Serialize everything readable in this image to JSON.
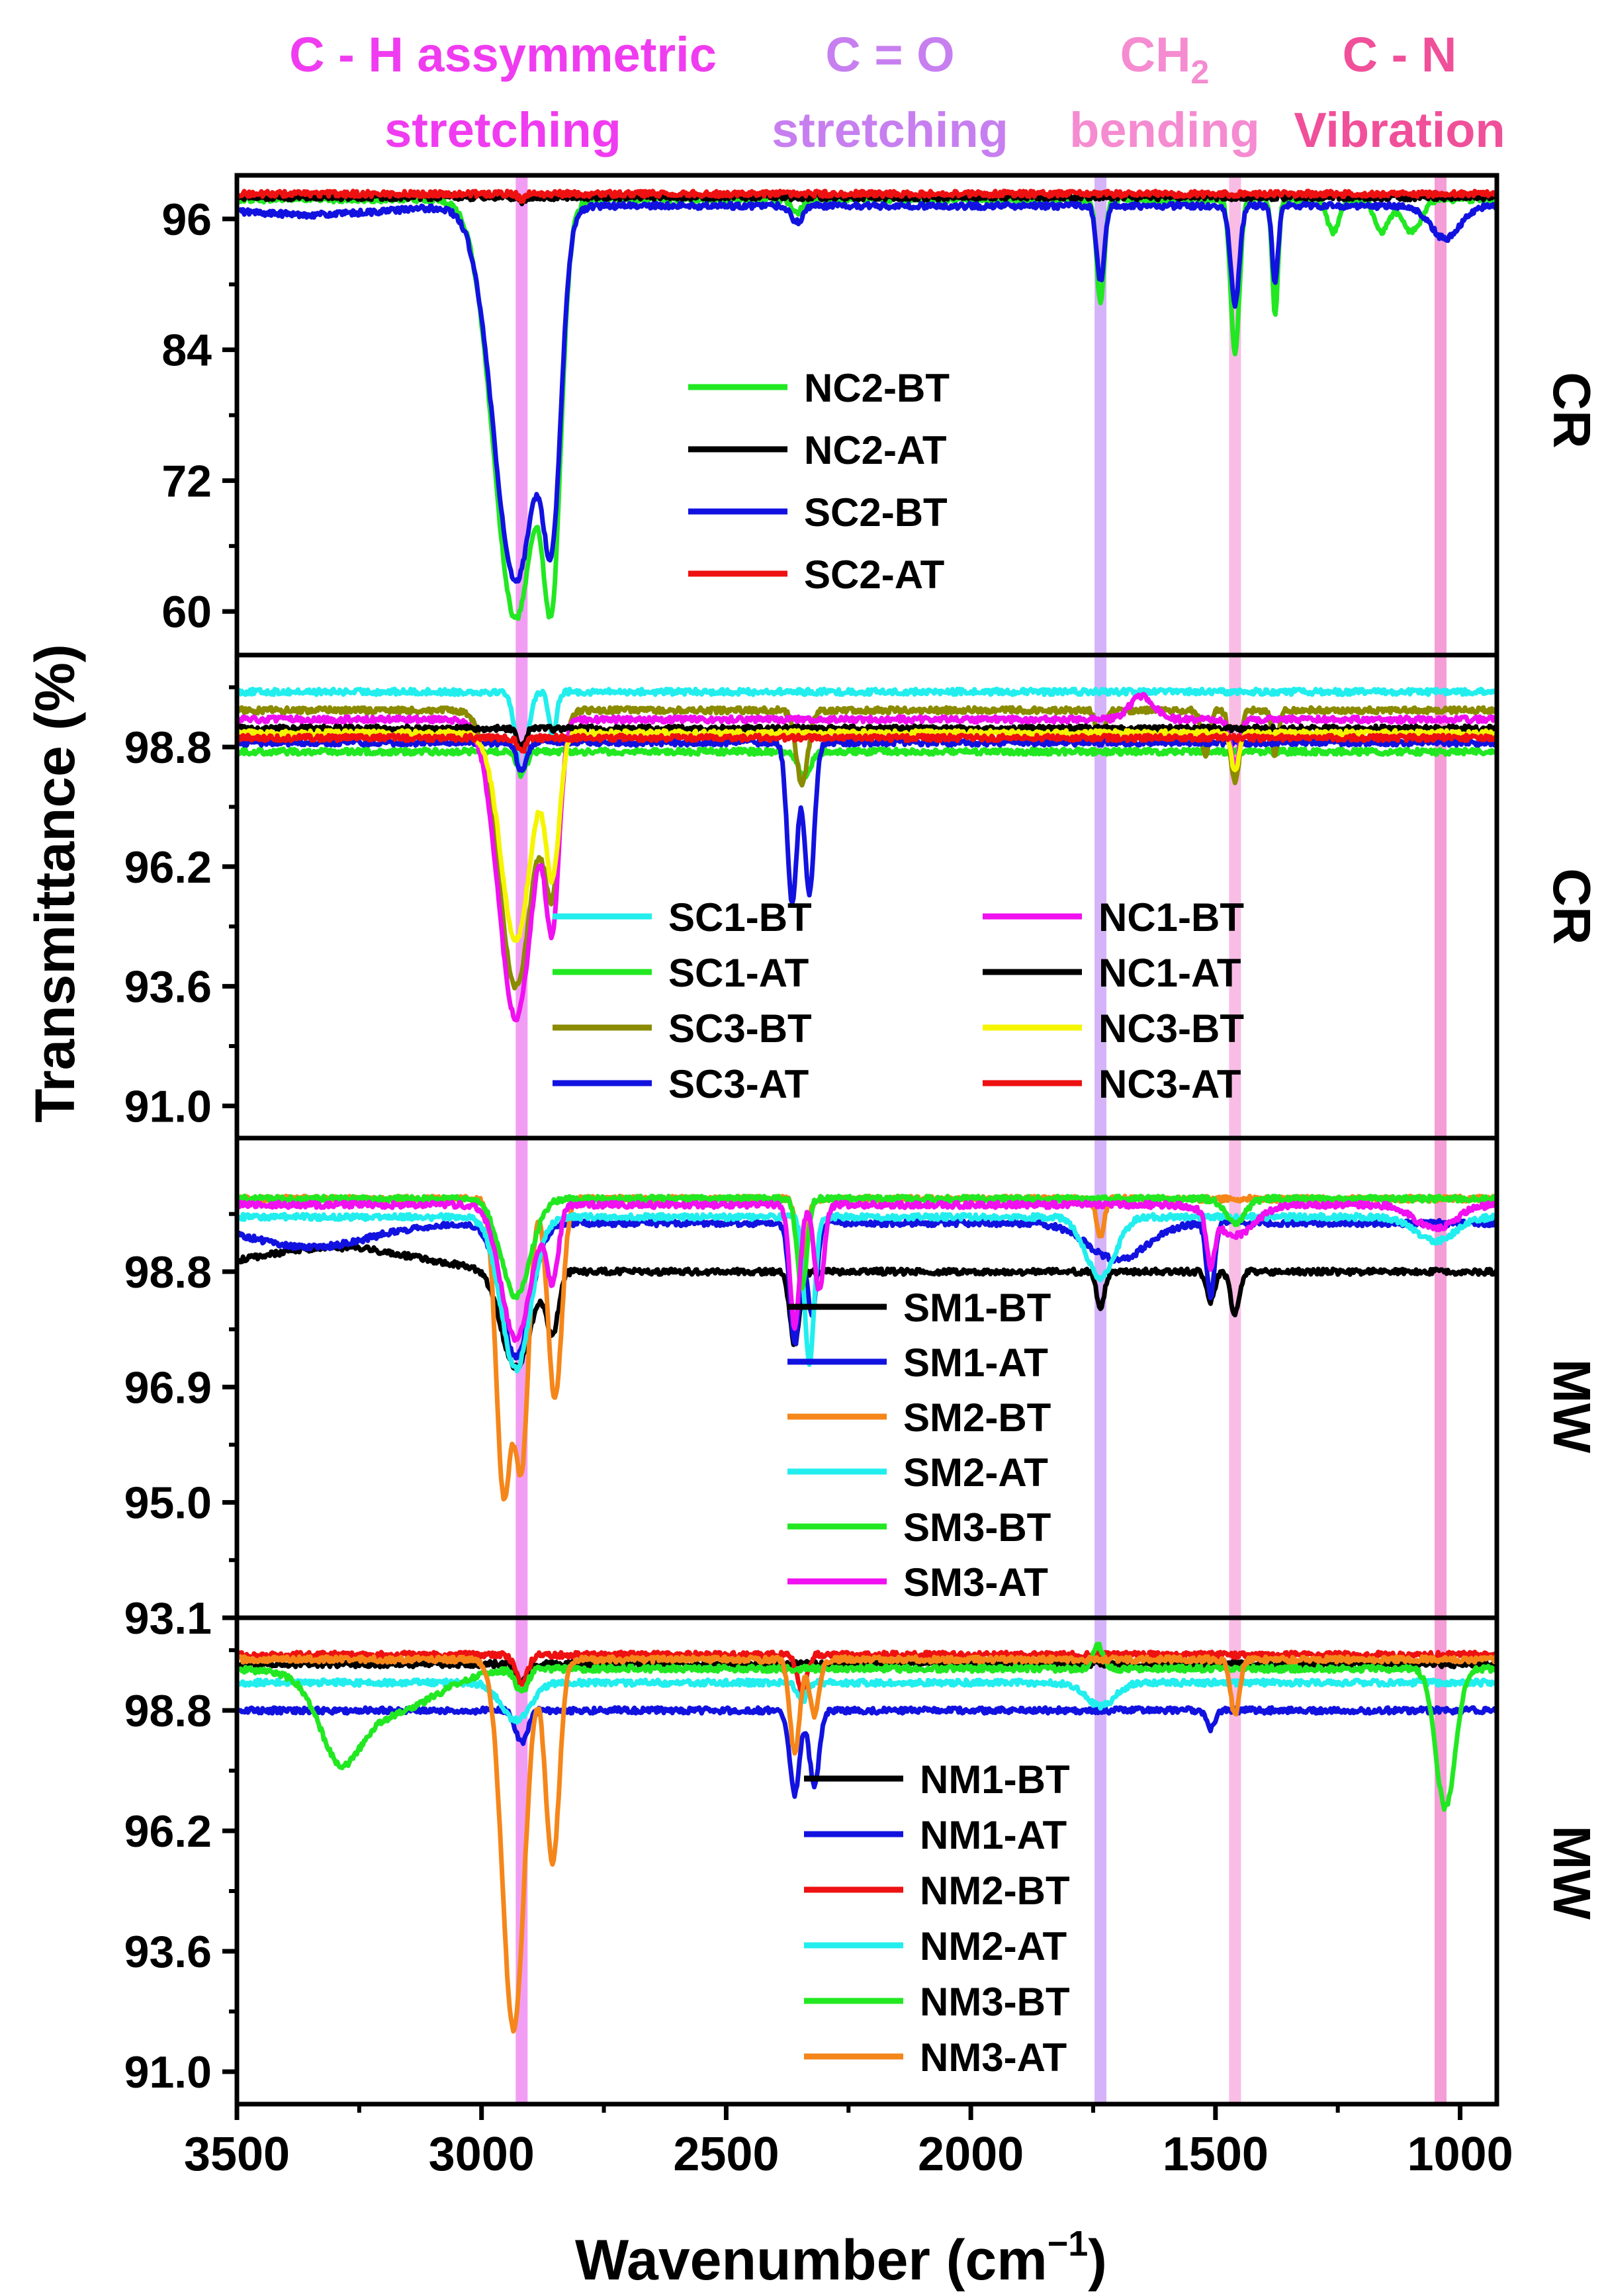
{
  "chart_data": {
    "type": "line",
    "title": "",
    "xlabel": "Wavenumber (cm",
    "xlabel_sup": "−1",
    "xlabel_close": ")",
    "ylabel": "Transmittance (%)",
    "xlim": [
      3500,
      925
    ],
    "x_ticks": [
      3500,
      3000,
      2500,
      2000,
      1500,
      1000
    ],
    "bands": [
      {
        "name": "C-H",
        "x": 2918,
        "color": "#ee7cf0",
        "line1": "C - H assymmetric",
        "line2": "stretching",
        "line2_sub": "",
        "line2_tail": "",
        "label_color": "#f03cf0"
      },
      {
        "name": "C=O",
        "x": 1735,
        "color": "#c79af5",
        "line1": "C = O",
        "line2": "stretching",
        "line2_sub": "",
        "line2_tail": "",
        "label_color": "#c77ff0"
      },
      {
        "name": "CH2",
        "x": 1460,
        "color": "#f5a5dc",
        "line1": "CH",
        "line1_sub": "2",
        "line2": "bending",
        "line2_sub": "",
        "line2_tail": "",
        "label_color": "#f58bd0"
      },
      {
        "name": "C-N",
        "x": 1040,
        "color": "#f07cc8",
        "line1": "C - N",
        "line2": "Vibration",
        "line2_sub": "",
        "line2_tail": "",
        "label_color": "#f0509a"
      }
    ],
    "panels": [
      {
        "id": "panel1",
        "side_label": "CR",
        "ylim": [
          56,
          100
        ],
        "yticks": [
          60,
          72,
          84,
          96
        ],
        "ytick_labels": [
          "60",
          "72",
          "84",
          "96"
        ],
        "legend_cols": 1,
        "series": [
          {
            "name": "NC2-BT",
            "color": "#22e822",
            "base": 97.8,
            "features": [
              [
                2930,
                45,
                -38.5
              ],
              [
                2855,
                18,
                -28
              ],
              [
                2355,
                12,
                -1.2
              ],
              [
                1735,
                8,
                -9.5
              ],
              [
                1460,
                9,
                -14
              ],
              [
                1378,
                6,
                -10.5
              ],
              [
                1260,
                12,
                -3
              ],
              [
                1160,
                14,
                -3
              ],
              [
                1100,
                20,
                -3
              ]
            ]
          },
          {
            "name": "NC2-AT",
            "color": "#000000",
            "base": 98.0,
            "features": [
              [
                2918,
                6,
                -0.5
              ]
            ]
          },
          {
            "name": "SC2-BT",
            "color": "#1212e0",
            "base": 97.2,
            "features": [
              [
                2930,
                45,
                -34.5
              ],
              [
                2855,
                18,
                -23
              ],
              [
                3350,
                150,
                -0.8
              ],
              [
                2355,
                12,
                -1.5
              ],
              [
                1735,
                8,
                -7
              ],
              [
                1460,
                9,
                -9
              ],
              [
                1378,
                6,
                -7
              ],
              [
                1030,
                30,
                -3
              ]
            ]
          },
          {
            "name": "SC2-AT",
            "color": "#ee1111",
            "base": 98.3,
            "features": [
              [
                2918,
                6,
                -0.6
              ]
            ]
          }
        ]
      },
      {
        "id": "panel2",
        "side_label": "CR",
        "ylim": [
          90.3,
          100.8
        ],
        "yticks": [
          91.0,
          93.6,
          96.2,
          98.8
        ],
        "ytick_labels": [
          "91.0",
          "93.6",
          "96.2",
          "98.8"
        ],
        "legend_cols": 2,
        "series": [
          {
            "name": "SC1-BT",
            "color": "#22eeee",
            "base": 100.0,
            "features": [
              [
                2918,
                12,
                -1.8
              ],
              [
                2855,
                8,
                -0.9
              ]
            ]
          },
          {
            "name": "SC1-AT",
            "color": "#22e822",
            "base": 98.7,
            "features": [
              [
                2918,
                10,
                -0.5
              ],
              [
                2340,
                12,
                -0.6
              ]
            ]
          },
          {
            "name": "SC3-BT",
            "color": "#8b8b00",
            "base": 99.6,
            "features": [
              [
                2930,
                35,
                -6.0
              ],
              [
                2855,
                16,
                -3.5
              ],
              [
                2345,
                12,
                -1.6
              ],
              [
                1735,
                8,
                -0.8
              ],
              [
                1460,
                9,
                -1.6
              ],
              [
                1520,
                8,
                -1.0
              ],
              [
                1378,
                6,
                -1.0
              ]
            ]
          },
          {
            "name": "SC3-AT",
            "color": "#1212e0",
            "base": 98.9,
            "features": [
              [
                2365,
                10,
                -3.5
              ],
              [
                2330,
                10,
                -3.3
              ],
              [
                2918,
                10,
                -0.6
              ]
            ]
          },
          {
            "name": "NC1-BT",
            "color": "#f010f0",
            "base": 99.4,
            "features": [
              [
                2930,
                35,
                -6.5
              ],
              [
                2855,
                14,
                -4.0
              ],
              [
                1460,
                9,
                -1.0
              ],
              [
                1650,
                25,
                0.5
              ]
            ]
          },
          {
            "name": "NC1-AT",
            "color": "#000000",
            "base": 99.2,
            "features": [
              [
                2918,
                8,
                -0.4
              ]
            ]
          },
          {
            "name": "NC3-BT",
            "color": "#f5f500",
            "base": 99.1,
            "features": [
              [
                2930,
                30,
                -4.5
              ],
              [
                2855,
                14,
                -3.0
              ],
              [
                1460,
                8,
                -0.8
              ]
            ]
          },
          {
            "name": "NC3-AT",
            "color": "#ee1111",
            "base": 99.0,
            "features": [
              [
                2918,
                8,
                -0.3
              ]
            ]
          }
        ]
      },
      {
        "id": "panel3",
        "side_label": "MW",
        "ylim": [
          93.1,
          101.0
        ],
        "yticks": [
          93.1,
          95.0,
          96.9,
          98.8
        ],
        "ytick_labels": [
          "93.1",
          "95.0",
          "96.9",
          "98.8"
        ],
        "legend_cols": 1,
        "series": [
          {
            "name": "SM1-BT",
            "color": "#000000",
            "base": 98.8,
            "features": [
              [
                2930,
                30,
                -1.6
              ],
              [
                2855,
                12,
                -1.0
              ],
              [
                2360,
                10,
                -1.2
              ],
              [
                1735,
                8,
                -0.6
              ],
              [
                1460,
                9,
                -0.7
              ],
              [
                1510,
                8,
                -0.5
              ],
              [
                3300,
                160,
                0.4
              ]
            ]
          },
          {
            "name": "SM1-AT",
            "color": "#1212e0",
            "base": 99.6,
            "features": [
              [
                2930,
                30,
                -2.2
              ],
              [
                2360,
                10,
                -2.0
              ],
              [
                2325,
                10,
                -1.5
              ],
              [
                1510,
                8,
                -1.2
              ],
              [
                1700,
                60,
                -0.6
              ],
              [
                3350,
                120,
                -0.4
              ]
            ]
          },
          {
            "name": "SM2-BT",
            "color": "#f5861a",
            "base": 100.0,
            "features": [
              [
                2955,
                15,
                -4.8
              ],
              [
                2918,
                14,
                -4.3
              ],
              [
                2850,
                14,
                -3.3
              ],
              [
                2345,
                10,
                -1.2
              ],
              [
                1735,
                8,
                -0.6
              ]
            ]
          },
          {
            "name": "SM2-AT",
            "color": "#22eeee",
            "base": 99.7,
            "features": [
              [
                2930,
                30,
                -2.5
              ],
              [
                2330,
                10,
                -2.4
              ],
              [
                1735,
                30,
                -1.0
              ],
              [
                1050,
                40,
                -0.4
              ]
            ]
          },
          {
            "name": "SM3-BT",
            "color": "#22e822",
            "base": 100.0,
            "features": [
              [
                2930,
                30,
                -1.6
              ],
              [
                2345,
                10,
                -1.5
              ],
              [
                1460,
                20,
                -0.4
              ]
            ]
          },
          {
            "name": "SM3-AT",
            "color": "#f010f0",
            "base": 99.9,
            "features": [
              [
                2930,
                30,
                -2.2
              ],
              [
                2855,
                12,
                -1.2
              ],
              [
                2360,
                10,
                -2.0
              ],
              [
                2310,
                10,
                -1.4
              ],
              [
                1510,
                8,
                -0.8
              ],
              [
                1460,
                40,
                -0.5
              ],
              [
                1050,
                40,
                -0.4
              ]
            ]
          }
        ]
      },
      {
        "id": "panel4",
        "side_label": "MW",
        "ylim": [
          90.3,
          100.8
        ],
        "yticks": [
          91.0,
          93.6,
          96.2,
          98.8
        ],
        "ytick_labels": [
          "91.0",
          "93.6",
          "96.2",
          "98.8"
        ],
        "legend_cols": 1,
        "series": [
          {
            "name": "NM1-BT",
            "color": "#000000",
            "base": 99.8,
            "features": [
              [
                2918,
                12,
                -0.4
              ]
            ]
          },
          {
            "name": "NM1-AT",
            "color": "#1212e0",
            "base": 98.8,
            "features": [
              [
                2918,
                12,
                -0.7
              ],
              [
                2360,
                10,
                -1.8
              ],
              [
                2320,
                10,
                -1.6
              ],
              [
                1510,
                8,
                -0.4
              ]
            ]
          },
          {
            "name": "NM2-BT",
            "color": "#ee1111",
            "base": 100.0,
            "features": [
              [
                2918,
                12,
                -0.6
              ],
              [
                2345,
                10,
                -0.8
              ]
            ]
          },
          {
            "name": "NM2-AT",
            "color": "#22eeee",
            "base": 99.4,
            "features": [
              [
                2930,
                30,
                -0.8
              ],
              [
                2345,
                10,
                -0.4
              ],
              [
                1735,
                30,
                -0.5
              ]
            ]
          },
          {
            "name": "NM3-BT",
            "color": "#22e822",
            "base": 99.7,
            "features": [
              [
                3290,
                40,
                -1.4
              ],
              [
                3200,
                100,
                -1.0
              ],
              [
                2918,
                12,
                -0.5
              ],
              [
                1030,
                20,
                -3.0
              ],
              [
                1740,
                10,
                0.5
              ]
            ]
          },
          {
            "name": "NM3-AT",
            "color": "#f5861a",
            "base": 99.9,
            "features": [
              [
                2935,
                22,
                -8.0
              ],
              [
                2855,
                14,
                -4.4
              ],
              [
                2360,
                10,
                -2.0
              ],
              [
                2320,
                10,
                -1.2
              ],
              [
                1460,
                9,
                -1.2
              ]
            ]
          }
        ]
      }
    ]
  }
}
